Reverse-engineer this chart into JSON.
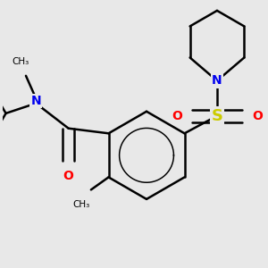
{
  "background_color": "#e8e8e8",
  "atom_colors": {
    "C": "#000000",
    "N": "#0000ee",
    "O": "#ff0000",
    "S": "#cccc00"
  },
  "bond_color": "#000000",
  "bond_width": 1.8,
  "font_size_atom": 10,
  "figsize": [
    3.0,
    3.0
  ],
  "dpi": 100
}
